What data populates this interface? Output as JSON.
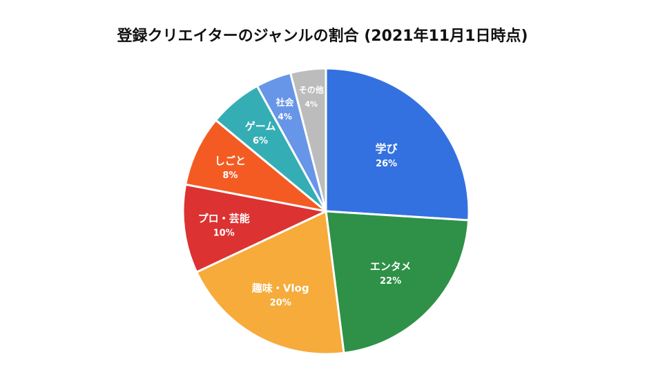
{
  "chart_data": {
    "type": "pie",
    "title": "登録クリエイターのジャンルの割合 (2021年11月1日時点)",
    "categories": [
      "学び",
      "エンタメ",
      "趣味・Vlog",
      "プロ・芸能",
      "しごと",
      "ゲーム",
      "社会",
      "その他"
    ],
    "values": [
      26,
      22,
      20,
      10,
      8,
      6,
      4,
      4
    ],
    "value_labels": [
      "26%",
      "22%",
      "20%",
      "10%",
      "8%",
      "6%",
      "4%",
      "4%"
    ],
    "colors": [
      "#3471e0",
      "#2e9147",
      "#f6ab3b",
      "#dc3232",
      "#f45b23",
      "#34aeb4",
      "#6796e8",
      "#bcbcbc"
    ],
    "start": "12 o'clock",
    "direction": "clockwise",
    "legend": "none",
    "data_labels": "inside"
  }
}
